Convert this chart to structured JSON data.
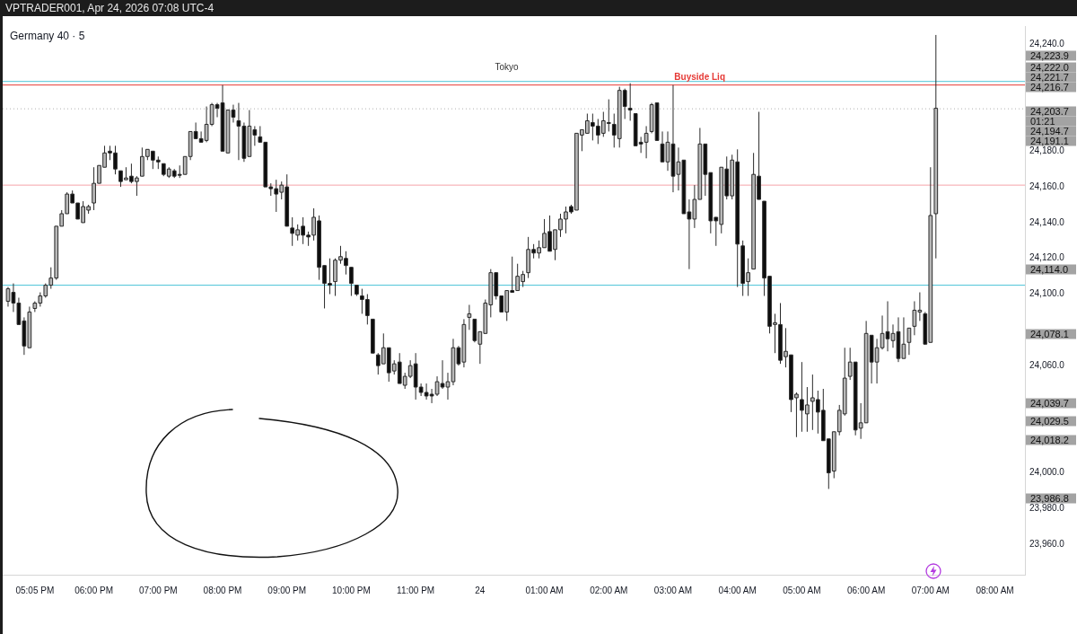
{
  "chart_data": {
    "type": "candlestick",
    "title": "Germany 40 · 5",
    "subtitle": "VPTRADER001, Apr 24, 2026 07:08 UTC-4",
    "x": [
      "2026-04-23T16:40",
      "2026-04-23T16:45",
      "2026-04-23T16:50",
      "2026-04-23T16:55",
      "2026-04-23T17:00",
      "2026-04-23T17:05",
      "2026-04-23T17:10",
      "2026-04-23T17:15",
      "2026-04-23T17:20",
      "2026-04-23T17:25",
      "2026-04-23T17:30",
      "2026-04-23T17:35",
      "2026-04-23T17:40",
      "2026-04-23T17:45",
      "2026-04-23T17:50",
      "2026-04-23T17:55",
      "2026-04-23T18:00",
      "2026-04-23T18:05",
      "2026-04-23T18:10",
      "2026-04-23T18:15",
      "2026-04-23T18:20",
      "2026-04-23T18:25",
      "2026-04-23T18:30",
      "2026-04-23T18:35",
      "2026-04-23T18:40",
      "2026-04-23T18:45",
      "2026-04-23T18:50",
      "2026-04-23T18:55",
      "2026-04-23T19:00",
      "2026-04-23T19:05",
      "2026-04-23T19:10",
      "2026-04-23T19:15",
      "2026-04-23T19:20",
      "2026-04-23T19:25",
      "2026-04-23T19:30",
      "2026-04-23T19:35",
      "2026-04-23T19:40",
      "2026-04-23T19:45",
      "2026-04-23T19:50",
      "2026-04-23T19:55",
      "2026-04-23T20:00",
      "2026-04-23T20:05",
      "2026-04-23T20:10",
      "2026-04-23T20:15",
      "2026-04-23T20:20",
      "2026-04-23T20:25",
      "2026-04-23T20:30",
      "2026-04-23T20:35",
      "2026-04-23T20:40",
      "2026-04-23T20:45",
      "2026-04-23T20:50",
      "2026-04-23T20:55",
      "2026-04-23T21:00",
      "2026-04-23T21:05",
      "2026-04-23T21:10",
      "2026-04-23T21:15",
      "2026-04-23T21:20",
      "2026-04-23T21:25",
      "2026-04-23T21:30",
      "2026-04-23T21:35",
      "2026-04-23T21:40",
      "2026-04-23T21:45",
      "2026-04-23T21:50",
      "2026-04-23T21:55",
      "2026-04-23T22:00",
      "2026-04-23T22:05",
      "2026-04-23T22:10",
      "2026-04-23T22:15",
      "2026-04-23T22:20",
      "2026-04-23T22:25",
      "2026-04-23T22:30",
      "2026-04-23T22:35",
      "2026-04-23T22:40",
      "2026-04-23T22:45",
      "2026-04-23T22:50",
      "2026-04-23T22:55",
      "2026-04-23T23:00",
      "2026-04-23T23:05",
      "2026-04-23T23:10",
      "2026-04-23T23:15",
      "2026-04-23T23:20",
      "2026-04-23T23:25",
      "2026-04-23T23:30",
      "2026-04-23T23:35",
      "2026-04-23T23:40",
      "2026-04-23T23:45",
      "2026-04-23T23:50",
      "2026-04-23T23:55",
      "2026-04-24T00:00",
      "2026-04-24T00:05",
      "2026-04-24T00:10",
      "2026-04-24T00:15",
      "2026-04-24T00:20",
      "2026-04-24T00:25",
      "2026-04-24T00:30",
      "2026-04-24T00:35",
      "2026-04-24T00:40",
      "2026-04-24T00:45",
      "2026-04-24T00:50",
      "2026-04-24T00:55",
      "2026-04-24T01:00",
      "2026-04-24T01:05",
      "2026-04-24T01:10",
      "2026-04-24T01:15",
      "2026-04-24T01:20",
      "2026-04-24T01:25",
      "2026-04-24T01:30",
      "2026-04-24T01:35",
      "2026-04-24T01:40",
      "2026-04-24T01:45",
      "2026-04-24T01:50",
      "2026-04-24T01:55",
      "2026-04-24T02:00",
      "2026-04-24T02:05",
      "2026-04-24T02:10",
      "2026-04-24T02:15",
      "2026-04-24T02:20",
      "2026-04-24T02:25",
      "2026-04-24T02:30",
      "2026-04-24T02:35",
      "2026-04-24T02:40",
      "2026-04-24T02:45",
      "2026-04-24T02:50",
      "2026-04-24T02:55",
      "2026-04-24T03:00",
      "2026-04-24T03:05",
      "2026-04-24T03:10",
      "2026-04-24T03:15",
      "2026-04-24T03:20",
      "2026-04-24T03:25",
      "2026-04-24T03:30",
      "2026-04-24T03:35",
      "2026-04-24T03:40",
      "2026-04-24T03:45",
      "2026-04-24T03:50",
      "2026-04-24T03:55",
      "2026-04-24T04:00",
      "2026-04-24T04:05",
      "2026-04-24T04:10",
      "2026-04-24T04:15",
      "2026-04-24T04:20",
      "2026-04-24T04:25",
      "2026-04-24T04:30",
      "2026-04-24T04:35",
      "2026-04-24T04:40",
      "2026-04-24T04:45",
      "2026-04-24T04:50",
      "2026-04-24T04:55",
      "2026-04-24T05:00",
      "2026-04-24T05:05",
      "2026-04-24T05:10",
      "2026-04-24T05:15",
      "2026-04-24T05:20",
      "2026-04-24T05:25",
      "2026-04-24T05:30",
      "2026-04-24T05:35",
      "2026-04-24T05:40",
      "2026-04-24T05:45",
      "2026-04-24T05:50",
      "2026-04-24T05:55",
      "2026-04-24T06:00",
      "2026-04-24T06:05",
      "2026-04-24T06:10",
      "2026-04-24T06:15",
      "2026-04-24T06:20",
      "2026-04-24T06:25",
      "2026-04-24T06:30",
      "2026-04-24T06:35",
      "2026-04-24T06:40",
      "2026-04-24T06:45",
      "2026-04-24T06:50",
      "2026-04-24T06:55",
      "2026-04-24T07:00",
      "2026-04-24T07:05"
    ],
    "ohlc": [
      [
        24096,
        24104,
        24093,
        24103
      ],
      [
        24101,
        24106,
        24090,
        24095
      ],
      [
        24095,
        24098,
        24083,
        24083
      ],
      [
        24085,
        24087,
        24066,
        24071
      ],
      [
        24070,
        24093,
        24070,
        24090
      ],
      [
        24092,
        24096,
        24090,
        24095
      ],
      [
        24095,
        24101,
        24093,
        24099
      ],
      [
        24099,
        24106,
        24098,
        24105
      ],
      [
        24105,
        24115,
        24103,
        24109
      ],
      [
        24109,
        24138,
        24108,
        24138
      ],
      [
        24138,
        24147,
        24138,
        24145
      ],
      [
        24145,
        24157,
        24145,
        24156
      ],
      [
        24156,
        24158,
        24151,
        24151
      ],
      [
        24151,
        24151,
        24142,
        24142
      ],
      [
        24140,
        24152,
        24140,
        24149
      ],
      [
        24147,
        24150,
        24145,
        24149
      ],
      [
        24151,
        24171,
        24147,
        24162
      ],
      [
        24162,
        24172,
        24162,
        24172
      ],
      [
        24171,
        24183,
        24171,
        24179
      ],
      [
        24180,
        24183,
        24175,
        24179
      ],
      [
        24179,
        24183,
        24167,
        24170
      ],
      [
        24169,
        24169,
        24160,
        24163
      ],
      [
        24164,
        24171,
        24164,
        24165
      ],
      [
        24166,
        24173,
        24162,
        24163
      ],
      [
        24163,
        24166,
        24155,
        24165
      ],
      [
        24166,
        24182,
        24166,
        24177
      ],
      [
        24177,
        24181,
        24175,
        24181
      ],
      [
        24180,
        24180,
        24170,
        24175
      ],
      [
        24175,
        24177,
        24170,
        24174
      ],
      [
        24173,
        24173,
        24166,
        24167
      ],
      [
        24166,
        24171,
        24165,
        24170
      ],
      [
        24169,
        24170,
        24165,
        24166
      ],
      [
        24167,
        24172,
        24165,
        24167
      ],
      [
        24167,
        24177,
        24167,
        24177
      ],
      [
        24177,
        24191,
        24175,
        24191
      ],
      [
        24191,
        24196,
        24187,
        24187
      ],
      [
        24187,
        24191,
        24185,
        24185
      ],
      [
        24186,
        24205,
        24185,
        24195
      ],
      [
        24195,
        24207,
        24194,
        24206
      ],
      [
        24206,
        24207,
        24199,
        24204
      ],
      [
        24207,
        24217,
        24180,
        24180
      ],
      [
        24179,
        24203,
        24179,
        24203
      ],
      [
        24203,
        24206,
        24196,
        24199
      ],
      [
        24197,
        24207,
        24175,
        24194
      ],
      [
        24194,
        24196,
        24174,
        24176
      ],
      [
        24177,
        24203,
        24177,
        24194
      ],
      [
        24192,
        24194,
        24183,
        24189
      ],
      [
        24188,
        24194,
        24185,
        24185
      ],
      [
        24185,
        24185,
        24160,
        24160
      ],
      [
        24160,
        24162,
        24155,
        24159
      ],
      [
        24159,
        24164,
        24146,
        24156
      ],
      [
        24157,
        24163,
        24153,
        24161
      ],
      [
        24160,
        24167,
        24138,
        24138
      ],
      [
        24137,
        24143,
        24127,
        24134
      ],
      [
        24133,
        24139,
        24130,
        24136
      ],
      [
        24138,
        24143,
        24128,
        24133
      ],
      [
        24133,
        24135,
        24127,
        24132
      ],
      [
        24133,
        24148,
        24130,
        24143
      ],
      [
        24141,
        24144,
        24108,
        24115
      ],
      [
        24116,
        24116,
        24092,
        24106
      ],
      [
        24106,
        24120,
        24100,
        24105
      ],
      [
        24107,
        24120,
        24099,
        24119
      ],
      [
        24119,
        24127,
        24117,
        24121
      ],
      [
        24120,
        24124,
        24111,
        24116
      ],
      [
        24115,
        24115,
        24099,
        24106
      ],
      [
        24105,
        24105,
        24099,
        24100
      ],
      [
        24099,
        24103,
        24089,
        24097
      ],
      [
        24097,
        24100,
        24083,
        24088
      ],
      [
        24086,
        24086,
        24067,
        24067
      ],
      [
        24066,
        24067,
        24055,
        24060
      ],
      [
        24061,
        24078,
        24061,
        24070
      ],
      [
        24070,
        24070,
        24051,
        24056
      ],
      [
        24057,
        24063,
        24055,
        24061
      ],
      [
        24062,
        24067,
        24050,
        24050
      ],
      [
        24049,
        24056,
        24047,
        24054
      ],
      [
        24054,
        24063,
        24053,
        24060
      ],
      [
        24061,
        24067,
        24041,
        24048
      ],
      [
        24048,
        24050,
        24043,
        24045
      ],
      [
        24045,
        24050,
        24041,
        24043
      ],
      [
        24044,
        24047,
        24039,
        24043
      ],
      [
        24044,
        24054,
        24043,
        24051
      ],
      [
        24050,
        24063,
        24047,
        24048
      ],
      [
        24048,
        24056,
        24041,
        24051
      ],
      [
        24051,
        24075,
        24049,
        24070
      ],
      [
        24070,
        24071,
        24060,
        24061
      ],
      [
        24062,
        24086,
        24059,
        24083
      ],
      [
        24087,
        24094,
        24080,
        24089
      ],
      [
        24086,
        24086,
        24073,
        24074
      ],
      [
        24072,
        24079,
        24061,
        24079
      ],
      [
        24078,
        24097,
        24078,
        24095
      ],
      [
        24094,
        24114,
        24087,
        24112
      ],
      [
        24112,
        24112,
        24097,
        24099
      ],
      [
        24099,
        24099,
        24090,
        24090
      ],
      [
        24090,
        24102,
        24085,
        24102
      ],
      [
        24102,
        24121,
        24101,
        24101
      ],
      [
        24102,
        24117,
        24102,
        24110
      ],
      [
        24107,
        24113,
        24104,
        24111
      ],
      [
        24112,
        24132,
        24109,
        24125
      ],
      [
        24125,
        24128,
        24120,
        24123
      ],
      [
        24123,
        24130,
        24120,
        24126
      ],
      [
        24126,
        24142,
        24126,
        24134
      ],
      [
        24135,
        24144,
        24124,
        24124
      ],
      [
        24125,
        24136,
        24119,
        24136
      ],
      [
        24136,
        24145,
        24132,
        24142
      ],
      [
        24142,
        24149,
        24134,
        24146
      ],
      [
        24149,
        24150,
        24145,
        24146
      ],
      [
        24147,
        24190,
        24147,
        24190
      ],
      [
        24189,
        24192,
        24180,
        24192
      ],
      [
        24190,
        24201,
        24190,
        24197
      ],
      [
        24196,
        24201,
        24186,
        24194
      ],
      [
        24194,
        24198,
        24184,
        24189
      ],
      [
        24190,
        24202,
        24188,
        24197
      ],
      [
        24196,
        24209,
        24191,
        24196
      ],
      [
        24195,
        24201,
        24182,
        24189
      ],
      [
        24187,
        24216,
        24182,
        24214
      ],
      [
        24214,
        24215,
        24198,
        24205
      ],
      [
        24204,
        24218,
        24197,
        24203
      ],
      [
        24201,
        24201,
        24183,
        24183
      ],
      [
        24185,
        24188,
        24179,
        24184
      ],
      [
        24185,
        24194,
        24176,
        24190
      ],
      [
        24191,
        24207,
        24190,
        24206
      ],
      [
        24207,
        24207,
        24186,
        24186
      ],
      [
        24184,
        24191,
        24174,
        24174
      ],
      [
        24174,
        24191,
        24169,
        24185
      ],
      [
        24184,
        24217,
        24157,
        24166
      ],
      [
        24167,
        24182,
        24158,
        24174
      ],
      [
        24175,
        24175,
        24145,
        24145
      ],
      [
        24146,
        24153,
        24114,
        24142
      ],
      [
        24142,
        24161,
        24137,
        24153
      ],
      [
        24153,
        24193,
        24153,
        24184
      ],
      [
        24184,
        24184,
        24155,
        24167
      ],
      [
        24168,
        24168,
        24134,
        24141
      ],
      [
        24143,
        24143,
        24127,
        24141
      ],
      [
        24139,
        24171,
        24134,
        24171
      ],
      [
        24170,
        24177,
        24153,
        24155
      ],
      [
        24155,
        24178,
        24153,
        24175
      ],
      [
        24174,
        24181,
        24104,
        24128
      ],
      [
        24127,
        24130,
        24099,
        24106
      ],
      [
        24107,
        24120,
        24099,
        24112
      ],
      [
        24114,
        24179,
        24114,
        24167
      ],
      [
        24166,
        24202,
        24153,
        24153
      ],
      [
        24152,
        24152,
        24099,
        24109
      ],
      [
        24110,
        24110,
        24078,
        24082
      ],
      [
        24083,
        24089,
        24067,
        24084
      ],
      [
        24083,
        24095,
        24061,
        24063
      ],
      [
        24065,
        24081,
        24059,
        24068
      ],
      [
        24066,
        24066,
        24034,
        24041
      ],
      [
        24042,
        24045,
        24020,
        24044
      ],
      [
        24041,
        24062,
        24023,
        24035
      ],
      [
        24033,
        24048,
        24023,
        24038
      ],
      [
        24040,
        24055,
        24024,
        24042
      ],
      [
        24041,
        24046,
        24022,
        24034
      ],
      [
        24035,
        24047,
        24018,
        24018
      ],
      [
        24019,
        24019,
        23991,
        24000
      ],
      [
        24001,
        24023,
        23997,
        24023
      ],
      [
        24023,
        24038,
        24021,
        24035
      ],
      [
        24033,
        24070,
        24032,
        24053
      ],
      [
        24054,
        24070,
        24052,
        24062
      ],
      [
        24062,
        24062,
        24021,
        24024
      ],
      [
        24025,
        24039,
        24019,
        24028
      ],
      [
        24028,
        24085,
        24028,
        24078
      ],
      [
        24077,
        24077,
        24050,
        24062
      ],
      [
        24062,
        24075,
        24050,
        24070
      ],
      [
        24070,
        24088,
        24069,
        24078
      ],
      [
        24079,
        24096,
        24068,
        24075
      ],
      [
        24074,
        24083,
        24070,
        24078
      ],
      [
        24079,
        24087,
        24062,
        24064
      ],
      [
        24064,
        24087,
        24064,
        24072
      ],
      [
        24073,
        24081,
        24066,
        24081
      ],
      [
        24082,
        24096,
        24077,
        24091
      ],
      [
        24090,
        24101,
        24085,
        24091
      ],
      [
        24089,
        24090,
        24072,
        24072
      ],
      [
        24073,
        24171,
        24073,
        24144
      ],
      [
        24145,
        24245,
        24120,
        24204
      ]
    ],
    "xlim": [
      "2026-04-23T16:35",
      "2026-04-24T08:28"
    ],
    "ylim": [
      23943,
      24250
    ],
    "xticks": [
      {
        "value": "2026-04-23T17:05",
        "label": "05:05 PM"
      },
      {
        "value": "2026-04-23T18:00",
        "label": "06:00 PM"
      },
      {
        "value": "2026-04-23T19:00",
        "label": "07:00 PM"
      },
      {
        "value": "2026-04-23T20:00",
        "label": "08:00 PM"
      },
      {
        "value": "2026-04-23T21:00",
        "label": "09:00 PM"
      },
      {
        "value": "2026-04-23T22:00",
        "label": "10:00 PM"
      },
      {
        "value": "2026-04-23T23:00",
        "label": "11:00 PM"
      },
      {
        "value": "2026-04-24T00:00",
        "label": "24"
      },
      {
        "value": "2026-04-24T01:00",
        "label": "01:00 AM"
      },
      {
        "value": "2026-04-24T02:00",
        "label": "02:00 AM"
      },
      {
        "value": "2026-04-24T03:00",
        "label": "03:00 AM"
      },
      {
        "value": "2026-04-24T04:00",
        "label": "04:00 AM"
      },
      {
        "value": "2026-04-24T05:00",
        "label": "05:00 AM"
      },
      {
        "value": "2026-04-24T06:00",
        "label": "06:00 AM"
      },
      {
        "value": "2026-04-24T07:00",
        "label": "07:00 AM"
      },
      {
        "value": "2026-04-24T08:00",
        "label": "08:00 AM"
      }
    ],
    "yticks": [
      {
        "value": 24240,
        "label": "24,240.0"
      },
      {
        "value": 24180,
        "label": "24,180.0"
      },
      {
        "value": 24160,
        "label": "24,160.0"
      },
      {
        "value": 24140,
        "label": "24,140.0"
      },
      {
        "value": 24120,
        "label": "24,120.0"
      },
      {
        "value": 24100,
        "label": "24,100.0"
      },
      {
        "value": 24060,
        "label": "24,060.0"
      },
      {
        "value": 24000,
        "label": "24,000.0"
      },
      {
        "value": 23980,
        "label": "23,980.0"
      },
      {
        "value": 23960,
        "label": "23,960.0"
      }
    ],
    "ref_lines": [
      {
        "axis": "y",
        "value": 24219,
        "color": "#4dc4d8"
      },
      {
        "axis": "y",
        "value": 24217,
        "label": "Buyside Liq",
        "color": "#e53935"
      },
      {
        "axis": "y",
        "value": 24203.7,
        "color": "#b0b0b0",
        "line_style": "dotted"
      },
      {
        "axis": "y",
        "value": 24161,
        "color": "#f5a3a9"
      },
      {
        "axis": "y",
        "value": 24105,
        "color": "#4dc4d8"
      }
    ],
    "annotations": [
      "Tokyo",
      "24,223.9",
      "24,222.0",
      "24,221.7",
      "24,216.7",
      "24,203.7",
      "01:21",
      "24,194.7",
      "24,191.1",
      "24,114.0",
      "24,078.1",
      "24,039.7",
      "24,029.5",
      "24,018.2",
      "23,986.8"
    ]
  }
}
